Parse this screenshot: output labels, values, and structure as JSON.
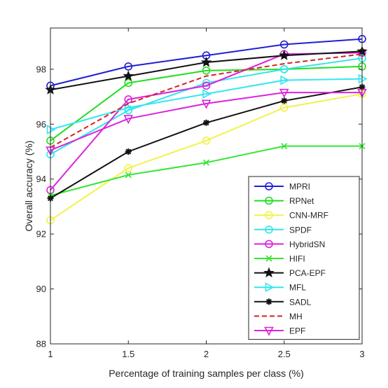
{
  "chart_data": {
    "type": "line",
    "title": "",
    "xlabel": "Percentage of training samples per class (%)",
    "ylabel": "Overall accuracy (%)",
    "xlim": [
      1,
      3
    ],
    "ylim": [
      88,
      99.5
    ],
    "x": [
      1,
      1.5,
      2,
      2.5,
      3
    ],
    "xticks": [
      "1",
      "1.5",
      "2",
      "2.5",
      "3"
    ],
    "yticks": [
      "88",
      "90",
      "92",
      "94",
      "96",
      "98"
    ],
    "grid": false,
    "legend_position": "bottom-right",
    "series": [
      {
        "name": "MPRI",
        "color": "#1f1fd6",
        "marker": "circle",
        "dash": false,
        "values": [
          97.4,
          98.1,
          98.5,
          98.9,
          99.1
        ]
      },
      {
        "name": "RPNet",
        "color": "#22dd22",
        "marker": "circle",
        "dash": false,
        "values": [
          95.4,
          97.5,
          97.95,
          98.0,
          98.1
        ]
      },
      {
        "name": "CNN-MRF",
        "color": "#f2f24a",
        "marker": "circle",
        "dash": false,
        "values": [
          92.5,
          94.4,
          95.4,
          96.6,
          97.1
        ]
      },
      {
        "name": "SPDF",
        "color": "#33e6e6",
        "marker": "circle",
        "dash": false,
        "values": [
          94.9,
          96.5,
          97.5,
          98.0,
          98.4
        ]
      },
      {
        "name": "HybridSN",
        "color": "#dd22dd",
        "marker": "circle",
        "dash": false,
        "values": [
          93.6,
          96.9,
          97.4,
          98.55,
          98.6
        ]
      },
      {
        "name": "HIFI",
        "color": "#33e633",
        "marker": "x",
        "dash": false,
        "values": [
          93.4,
          94.15,
          94.6,
          95.2,
          95.2
        ]
      },
      {
        "name": "PCA-EPF",
        "color": "#111111",
        "marker": "star",
        "dash": false,
        "values": [
          97.25,
          97.75,
          98.25,
          98.5,
          98.65
        ]
      },
      {
        "name": "MFL",
        "color": "#33e6f2",
        "marker": "triangle-right",
        "dash": false,
        "values": [
          95.8,
          96.6,
          97.1,
          97.6,
          97.65
        ]
      },
      {
        "name": "SADL",
        "color": "#111111",
        "marker": "asterisk",
        "dash": false,
        "values": [
          93.3,
          95.0,
          96.05,
          96.85,
          97.35
        ]
      },
      {
        "name": "MH",
        "color": "#d62222",
        "marker": "none",
        "dash": true,
        "values": [
          95.15,
          96.75,
          97.75,
          98.2,
          98.55
        ]
      },
      {
        "name": "EPF",
        "color": "#dd22dd",
        "marker": "triangle-down",
        "dash": false,
        "values": [
          95.05,
          96.2,
          96.75,
          97.15,
          97.15
        ]
      }
    ]
  }
}
